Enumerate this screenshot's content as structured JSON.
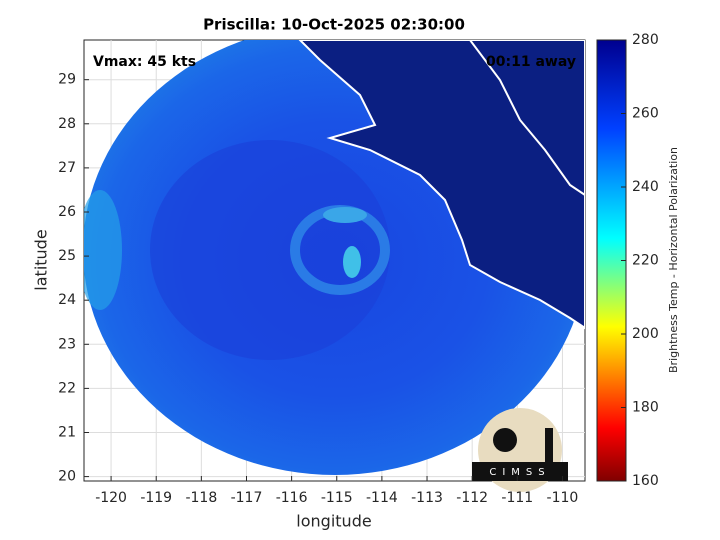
{
  "title": "Priscilla: 10-Oct-2025 02:30:00",
  "annotations": {
    "vmax": "Vmax: 45 kts",
    "time_away": "00:11 away"
  },
  "logo": "CIMSS",
  "axes": {
    "xlabel": "longitude",
    "ylabel": "latitude",
    "xlim": [
      -120.6,
      -109.5
    ],
    "ylim": [
      19.9,
      29.9
    ],
    "xticks": [
      -120,
      -119,
      -118,
      -117,
      -116,
      -115,
      -114,
      -113,
      -112,
      -111,
      -110
    ],
    "yticks": [
      20,
      21,
      22,
      23,
      24,
      25,
      26,
      27,
      28,
      29
    ],
    "grid": true
  },
  "colorbar": {
    "label": "Brightness Temp - Horizontal Polarization",
    "lim": [
      160,
      280
    ],
    "ticks": [
      160,
      180,
      200,
      220,
      240,
      260,
      280
    ],
    "colormap": "jet"
  }
}
